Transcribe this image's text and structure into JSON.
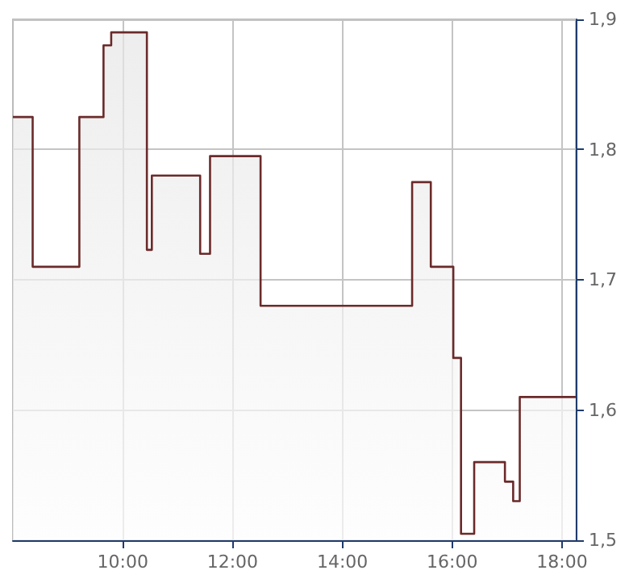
{
  "chart_data": {
    "type": "area",
    "color": "#6b2a2a",
    "x": [
      8.0,
      8.36,
      8.36,
      9.21,
      9.21,
      9.65,
      9.65,
      9.79,
      9.79,
      10.44,
      10.44,
      10.53,
      10.53,
      11.41,
      11.41,
      11.59,
      11.59,
      12.51,
      12.51,
      15.27,
      15.27,
      15.61,
      15.61,
      16.02,
      16.02,
      16.16,
      16.16,
      16.4,
      16.4,
      16.96,
      16.96,
      17.11,
      17.11,
      17.23,
      17.23,
      18.25
    ],
    "values": [
      1.825,
      1.825,
      1.71,
      1.71,
      1.825,
      1.825,
      1.88,
      1.88,
      1.89,
      1.89,
      1.723,
      1.723,
      1.78,
      1.78,
      1.72,
      1.72,
      1.795,
      1.795,
      1.68,
      1.68,
      1.775,
      1.775,
      1.71,
      1.71,
      1.64,
      1.64,
      1.505,
      1.505,
      1.56,
      1.56,
      1.545,
      1.545,
      1.53,
      1.53,
      1.61,
      1.61
    ],
    "xlim": [
      8,
      18.25
    ],
    "xticks": [
      {
        "value": 10,
        "label": "10:00"
      },
      {
        "value": 12,
        "label": "12:00"
      },
      {
        "value": 14,
        "label": "14:00"
      },
      {
        "value": 16,
        "label": "16:00"
      },
      {
        "value": 18,
        "label": "18:00"
      }
    ],
    "ylim": [
      1.5,
      1.9
    ],
    "yticks": [
      {
        "value": 1.5,
        "label": "1,5"
      },
      {
        "value": 1.6,
        "label": "1,6"
      },
      {
        "value": 1.7,
        "label": "1,7"
      },
      {
        "value": 1.8,
        "label": "1,8"
      },
      {
        "value": 1.9,
        "label": "1,9"
      }
    ],
    "grid": true
  }
}
